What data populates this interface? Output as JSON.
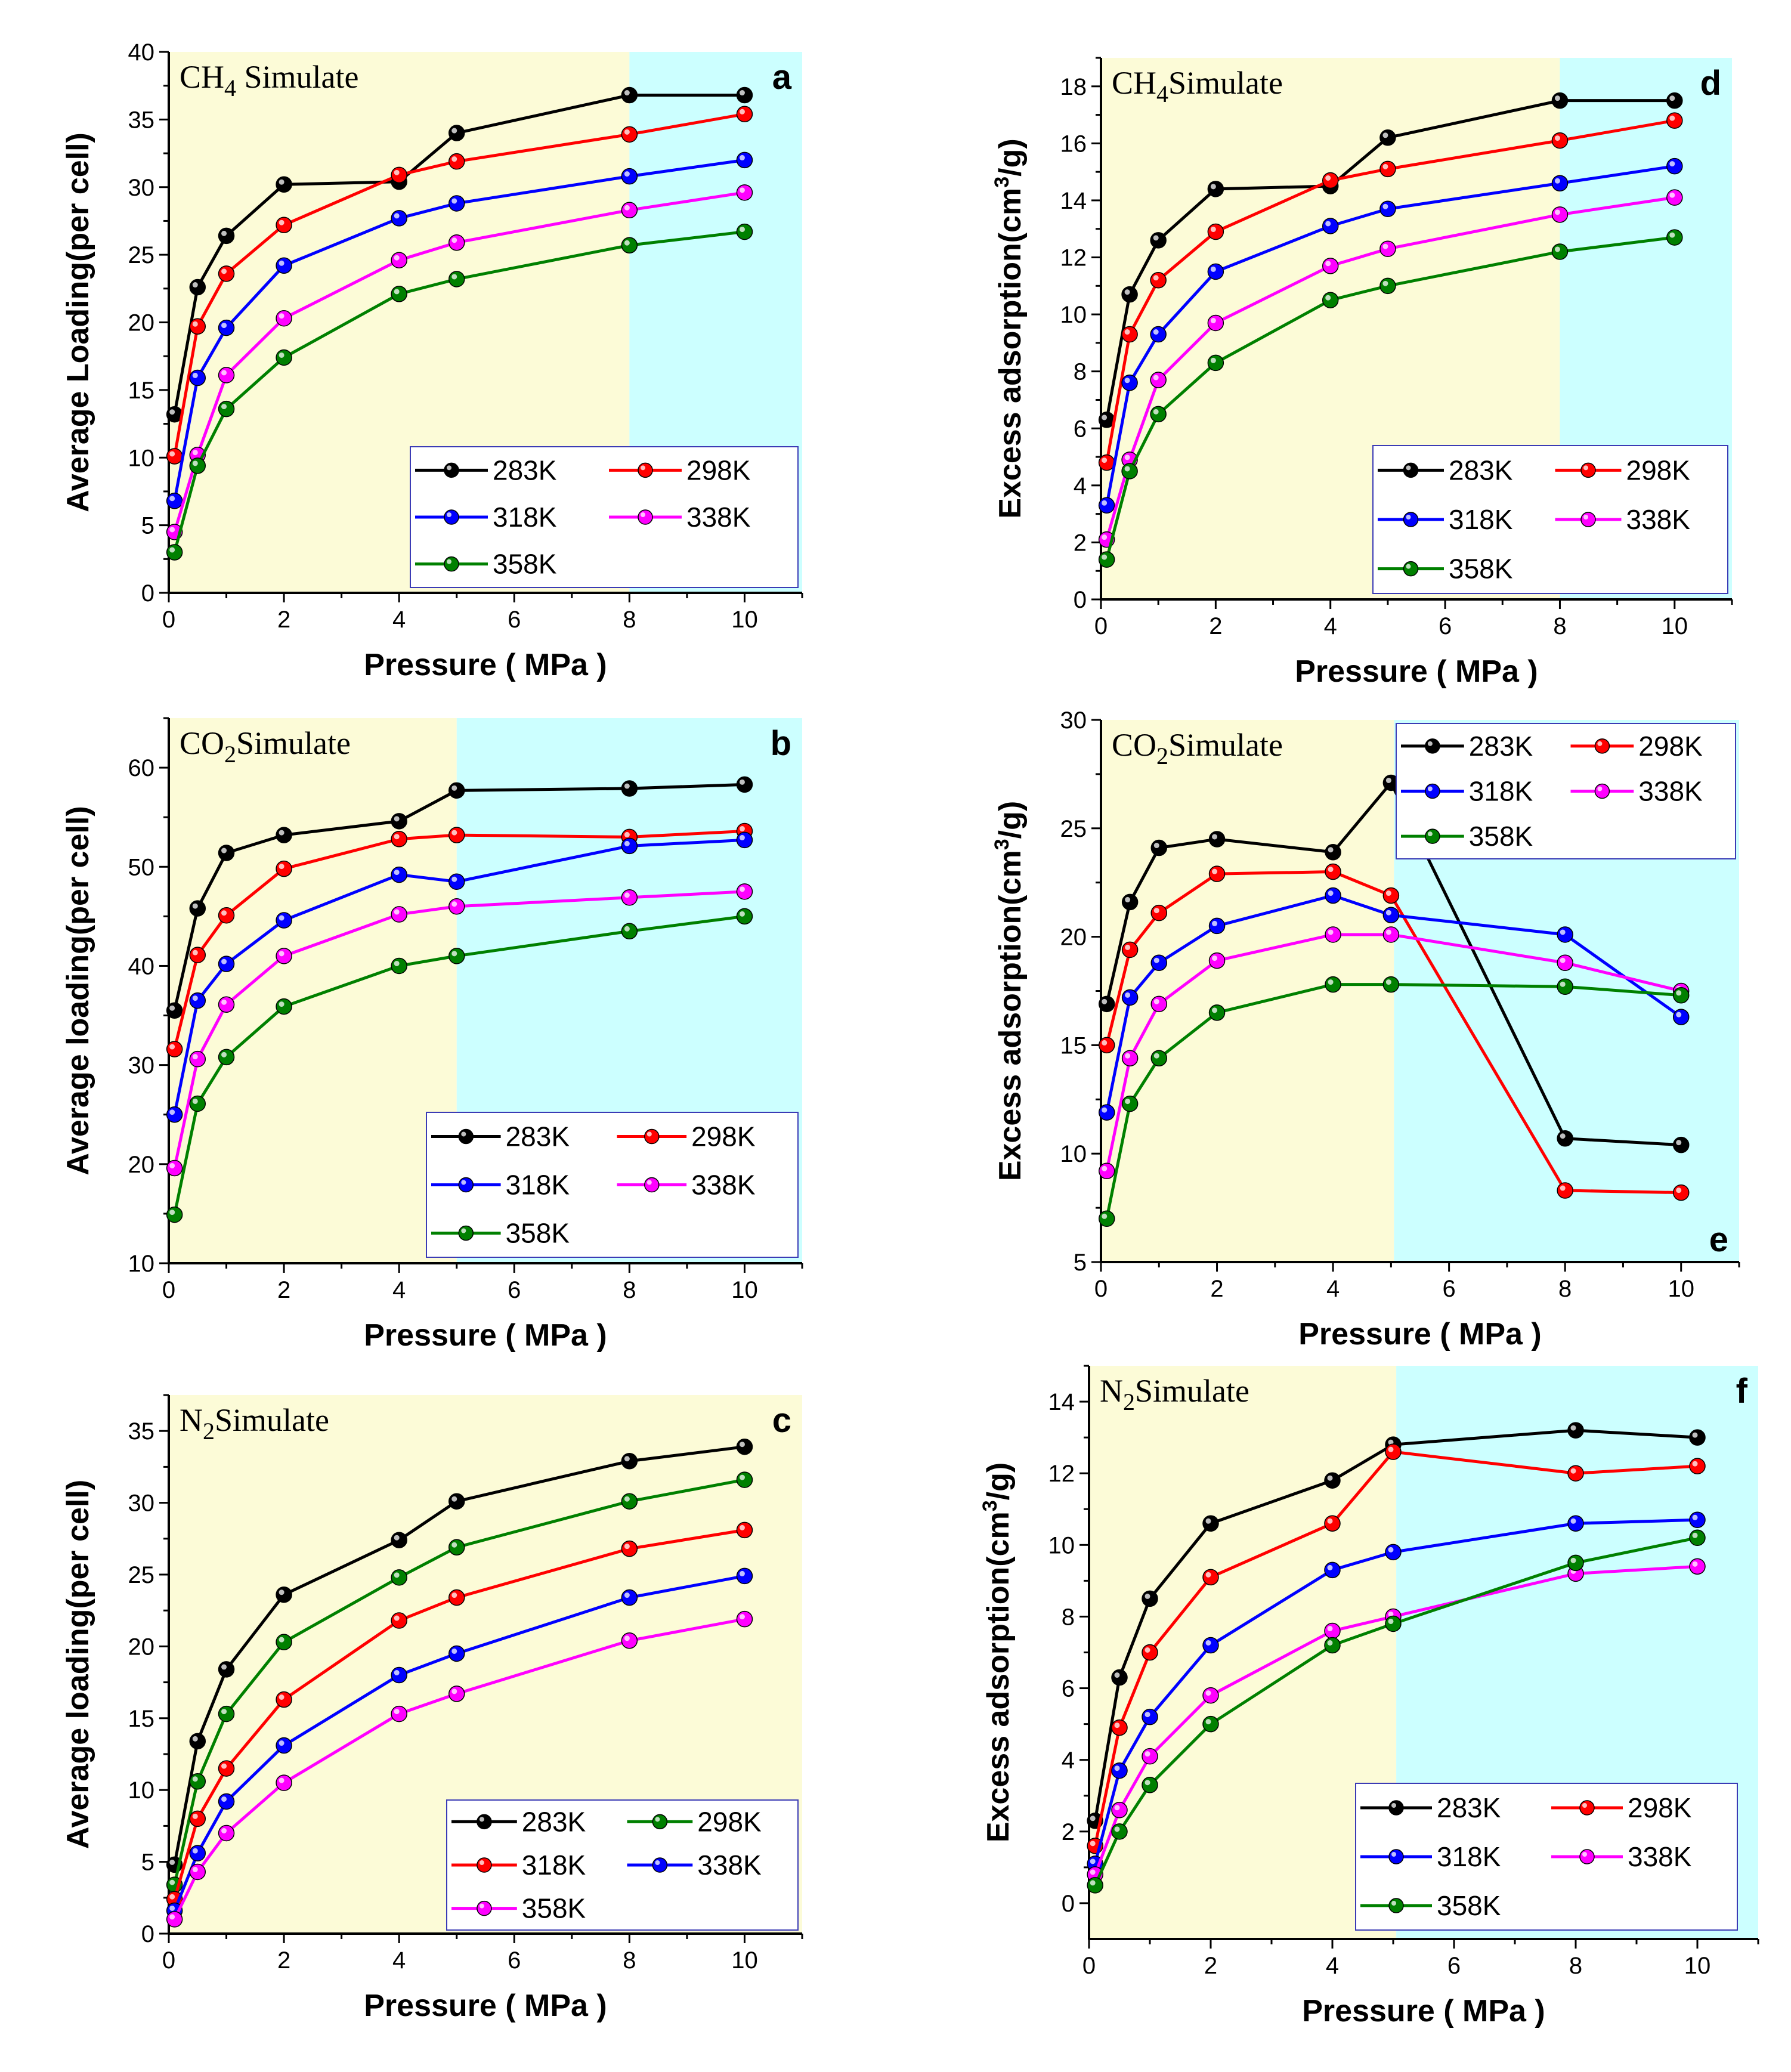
{
  "figure": {
    "background": "#ffffff"
  },
  "colors": {
    "283K": "#000000",
    "298K": "#ff0000",
    "318K": "#0000ff",
    "338K": "#ff00ff",
    "358K": "#008000",
    "N2_298K": "#008000",
    "region_low": "#fcfbd7",
    "region_high": "#ccffff"
  },
  "chart_data": [
    {
      "id": "a",
      "type": "line",
      "letter": "a",
      "title_main": "CH",
      "title_sub": "4",
      "title_rest": " Simulate",
      "xlabel": "Pressure ( MPa )",
      "ylabel": "Average Loading(per cell)",
      "xlim": [
        0,
        11
      ],
      "ylim": [
        0,
        40
      ],
      "xticks": [
        0,
        2,
        4,
        6,
        8,
        10
      ],
      "yticks": [
        0,
        5,
        10,
        15,
        20,
        25,
        30,
        35,
        40
      ],
      "region_split": 8,
      "legend_position": "bottom-right",
      "series": [
        {
          "name": "283K",
          "color_key": "283K",
          "x": [
            0.1,
            0.5,
            1,
            2,
            4,
            5,
            8,
            10
          ],
          "y": [
            13.2,
            22.6,
            26.4,
            30.2,
            30.4,
            34.0,
            36.8,
            36.8
          ]
        },
        {
          "name": "298K",
          "color_key": "298K",
          "x": [
            0.1,
            0.5,
            1,
            2,
            4,
            5,
            8,
            10
          ],
          "y": [
            10.1,
            19.7,
            23.6,
            27.2,
            30.9,
            31.9,
            33.9,
            35.4
          ]
        },
        {
          "name": "318K",
          "color_key": "318K",
          "x": [
            0.1,
            0.5,
            1,
            2,
            4,
            5,
            8,
            10
          ],
          "y": [
            6.8,
            15.9,
            19.6,
            24.2,
            27.7,
            28.8,
            30.8,
            32.0
          ]
        },
        {
          "name": "338K",
          "color_key": "338K",
          "x": [
            0.1,
            0.5,
            1,
            2,
            4,
            5,
            8,
            10
          ],
          "y": [
            4.5,
            10.2,
            16.1,
            20.3,
            24.6,
            25.9,
            28.3,
            29.6
          ]
        },
        {
          "name": "358K",
          "color_key": "358K",
          "x": [
            0.1,
            0.5,
            1,
            2,
            4,
            5,
            8,
            10
          ],
          "y": [
            3.0,
            9.4,
            13.6,
            17.4,
            22.1,
            23.2,
            25.7,
            26.7
          ]
        }
      ]
    },
    {
      "id": "d",
      "type": "line",
      "letter": "d",
      "title_main": "CH",
      "title_sub": "4",
      "title_rest": "Simulate",
      "xlabel": "Pressure ( MPa )",
      "ylabel": "Excess adsorption(cm3/g)",
      "ylabel_pre": "Excess adsorption(cm",
      "ylabel_sup": "3",
      "ylabel_post": "/g)",
      "xlim": [
        0,
        11
      ],
      "ylim": [
        0,
        19
      ],
      "xticks": [
        0,
        2,
        4,
        6,
        8,
        10
      ],
      "yticks": [
        0,
        2,
        4,
        6,
        8,
        10,
        12,
        14,
        16,
        18
      ],
      "region_split": 8,
      "legend_position": "bottom-right",
      "series": [
        {
          "name": "283K",
          "color_key": "283K",
          "x": [
            0.1,
            0.5,
            1,
            2,
            4,
            5,
            8,
            10
          ],
          "y": [
            6.3,
            10.7,
            12.6,
            14.4,
            14.5,
            16.2,
            17.5,
            17.5
          ]
        },
        {
          "name": "298K",
          "color_key": "298K",
          "x": [
            0.1,
            0.5,
            1,
            2,
            4,
            5,
            8,
            10
          ],
          "y": [
            4.8,
            9.3,
            11.2,
            12.9,
            14.7,
            15.1,
            16.1,
            16.8
          ]
        },
        {
          "name": "318K",
          "color_key": "318K",
          "x": [
            0.1,
            0.5,
            1,
            2,
            4,
            5,
            8,
            10
          ],
          "y": [
            3.3,
            7.6,
            9.3,
            11.5,
            13.1,
            13.7,
            14.6,
            15.2
          ]
        },
        {
          "name": "338K",
          "color_key": "338K",
          "x": [
            0.1,
            0.5,
            1,
            2,
            4,
            5,
            8,
            10
          ],
          "y": [
            2.1,
            4.9,
            7.7,
            9.7,
            11.7,
            12.3,
            13.5,
            14.1
          ]
        },
        {
          "name": "358K",
          "color_key": "358K",
          "x": [
            0.1,
            0.5,
            1,
            2,
            4,
            5,
            8,
            10
          ],
          "y": [
            1.4,
            4.5,
            6.5,
            8.3,
            10.5,
            11.0,
            12.2,
            12.7
          ]
        }
      ]
    },
    {
      "id": "b",
      "type": "line",
      "letter": "b",
      "title_main": "CO",
      "title_sub": "2",
      "title_rest": "Simulate",
      "xlabel": "Pressure ( MPa )",
      "ylabel": "Average loading(per cell)",
      "xlim": [
        0,
        11
      ],
      "ylim": [
        10,
        65
      ],
      "xticks": [
        0,
        2,
        4,
        6,
        8,
        10
      ],
      "yticks": [
        10,
        20,
        30,
        40,
        50,
        60
      ],
      "region_split": 5,
      "legend_position": "bottom-right",
      "series": [
        {
          "name": "283K",
          "color_key": "283K",
          "x": [
            0.1,
            0.5,
            1,
            2,
            4,
            5,
            8,
            10
          ],
          "y": [
            35.5,
            45.8,
            51.4,
            53.2,
            54.6,
            57.7,
            57.9,
            58.3
          ]
        },
        {
          "name": "298K",
          "color_key": "298K",
          "x": [
            0.1,
            0.5,
            1,
            2,
            4,
            5,
            8,
            10
          ],
          "y": [
            31.6,
            41.1,
            45.1,
            49.8,
            52.8,
            53.2,
            53.0,
            53.6
          ]
        },
        {
          "name": "318K",
          "color_key": "318K",
          "x": [
            0.1,
            0.5,
            1,
            2,
            4,
            5,
            8,
            10
          ],
          "y": [
            25.0,
            36.5,
            40.2,
            44.6,
            49.2,
            48.5,
            52.1,
            52.7
          ]
        },
        {
          "name": "338K",
          "color_key": "338K",
          "x": [
            0.1,
            0.5,
            1,
            2,
            4,
            5,
            8,
            10
          ],
          "y": [
            19.6,
            30.6,
            36.1,
            41.0,
            45.2,
            46.0,
            46.9,
            47.5
          ]
        },
        {
          "name": "358K",
          "color_key": "358K",
          "x": [
            0.1,
            0.5,
            1,
            2,
            4,
            5,
            8,
            10
          ],
          "y": [
            14.9,
            26.1,
            30.8,
            35.9,
            40.0,
            41.0,
            43.5,
            45.0
          ]
        }
      ]
    },
    {
      "id": "e",
      "type": "line",
      "letter": "e",
      "title_main": "CO",
      "title_sub": "2",
      "title_rest": "Simulate",
      "xlabel": "Pressure ( MPa )",
      "ylabel": "Excess adsorption(cm3/g)",
      "ylabel_pre": "Excess adsorption(cm",
      "ylabel_sup": "3",
      "ylabel_post": "/g)",
      "xlim": [
        0,
        11
      ],
      "ylim": [
        5,
        30
      ],
      "xticks": [
        0,
        2,
        4,
        6,
        8,
        10
      ],
      "yticks": [
        5,
        10,
        15,
        20,
        25,
        30
      ],
      "region_split": 5.05,
      "legend_position": "top-right",
      "series": [
        {
          "name": "283K",
          "color_key": "283K",
          "x": [
            0.1,
            0.5,
            1,
            2,
            4,
            5,
            8,
            10
          ],
          "y": [
            16.9,
            21.6,
            24.1,
            24.5,
            23.9,
            27.1,
            10.7,
            10.4
          ]
        },
        {
          "name": "298K",
          "color_key": "298K",
          "x": [
            0.1,
            0.5,
            1,
            2,
            4,
            5,
            8,
            10
          ],
          "y": [
            15.0,
            19.4,
            21.1,
            22.9,
            23.0,
            21.9,
            8.3,
            8.2
          ]
        },
        {
          "name": "318K",
          "color_key": "318K",
          "x": [
            0.1,
            0.5,
            1,
            2,
            4,
            5,
            8,
            10
          ],
          "y": [
            11.9,
            17.2,
            18.8,
            20.5,
            21.9,
            21.0,
            20.1,
            16.3
          ]
        },
        {
          "name": "338K",
          "color_key": "338K",
          "x": [
            0.1,
            0.5,
            1,
            2,
            4,
            5,
            8,
            10
          ],
          "y": [
            9.2,
            14.4,
            16.9,
            18.9,
            20.1,
            20.1,
            18.8,
            17.5
          ]
        },
        {
          "name": "358K",
          "color_key": "358K",
          "x": [
            0.1,
            0.5,
            1,
            2,
            4,
            5,
            8,
            10
          ],
          "y": [
            7.0,
            12.3,
            14.4,
            16.5,
            17.8,
            17.8,
            17.7,
            17.3
          ]
        }
      ]
    },
    {
      "id": "c",
      "type": "line",
      "letter": "c",
      "title_main": "N",
      "title_sub": "2",
      "title_rest": "Simulate",
      "xlabel": "Pressure ( MPa )",
      "ylabel": "Average loading(per cell)",
      "xlim": [
        0,
        11
      ],
      "ylim": [
        0,
        37.5
      ],
      "xticks": [
        0,
        2,
        4,
        6,
        8,
        10
      ],
      "yticks": [
        0,
        5,
        10,
        15,
        20,
        25,
        30,
        35
      ],
      "region_split": null,
      "legend_position": "bottom-right",
      "series": [
        {
          "name": "283K",
          "color_key": "283K",
          "x": [
            0.1,
            0.5,
            1,
            2,
            4,
            5,
            8,
            10
          ],
          "y": [
            4.8,
            13.4,
            18.4,
            23.6,
            27.4,
            30.1,
            32.9,
            33.9
          ]
        },
        {
          "name": "298K",
          "color_key": "N2_298K",
          "x": [
            0.1,
            0.5,
            1,
            2,
            4,
            5,
            8,
            10
          ],
          "y": [
            3.4,
            10.6,
            15.3,
            20.3,
            24.8,
            26.9,
            30.1,
            31.6
          ]
        },
        {
          "name": "318K",
          "color_key": "298K",
          "x": [
            0.1,
            0.5,
            1,
            2,
            4,
            5,
            8,
            10
          ],
          "y": [
            2.4,
            8.0,
            11.5,
            16.3,
            21.8,
            23.4,
            26.8,
            28.1
          ]
        },
        {
          "name": "338K",
          "color_key": "318K",
          "x": [
            0.1,
            0.5,
            1,
            2,
            4,
            5,
            8,
            10
          ],
          "y": [
            1.6,
            5.6,
            9.2,
            13.1,
            18.0,
            19.5,
            23.4,
            24.9
          ]
        },
        {
          "name": "358K",
          "color_key": "338K",
          "x": [
            0.1,
            0.5,
            1,
            2,
            4,
            5,
            8,
            10
          ],
          "y": [
            1.0,
            4.3,
            7.0,
            10.5,
            15.3,
            16.7,
            20.4,
            21.9
          ]
        }
      ]
    },
    {
      "id": "f",
      "type": "line",
      "letter": "f",
      "title_main": "N",
      "title_sub": "2",
      "title_rest": "Simulate",
      "xlabel": "Pressure ( MPa )",
      "ylabel": "Excess adsorption(cm3/g)",
      "ylabel_pre": "Excess adsorption(cm",
      "ylabel_sup": "3",
      "ylabel_post": "/g)",
      "xlim": [
        0,
        11
      ],
      "ylim": [
        -1,
        15
      ],
      "xticks": [
        0,
        2,
        4,
        6,
        8,
        10
      ],
      "yticks": [
        0,
        2,
        4,
        6,
        8,
        10,
        12,
        14
      ],
      "region_split": 5.05,
      "legend_position": "bottom-right",
      "series": [
        {
          "name": "283K",
          "color_key": "283K",
          "x": [
            0.1,
            0.5,
            1,
            2,
            4,
            5,
            8,
            10
          ],
          "y": [
            2.3,
            6.3,
            8.5,
            10.6,
            11.8,
            12.8,
            13.2,
            13.0
          ]
        },
        {
          "name": "298K",
          "color_key": "298K",
          "x": [
            0.1,
            0.5,
            1,
            2,
            4,
            5,
            8,
            10
          ],
          "y": [
            1.6,
            4.9,
            7.0,
            9.1,
            10.6,
            12.6,
            12.0,
            12.2
          ]
        },
        {
          "name": "318K",
          "color_key": "318K",
          "x": [
            0.1,
            0.5,
            1,
            2,
            4,
            5,
            8,
            10
          ],
          "y": [
            1.1,
            3.7,
            5.2,
            7.2,
            9.3,
            9.8,
            10.6,
            10.7
          ]
        },
        {
          "name": "338K",
          "color_key": "338K",
          "x": [
            0.1,
            0.5,
            1,
            2,
            4,
            5,
            8,
            10
          ],
          "y": [
            0.8,
            2.6,
            4.1,
            5.8,
            7.6,
            8.0,
            9.2,
            9.4
          ]
        },
        {
          "name": "358K",
          "color_key": "358K",
          "x": [
            0.1,
            0.5,
            1,
            2,
            4,
            5,
            8,
            10
          ],
          "y": [
            0.5,
            2.0,
            3.3,
            5.0,
            7.2,
            7.8,
            9.5,
            10.2
          ]
        }
      ]
    }
  ]
}
